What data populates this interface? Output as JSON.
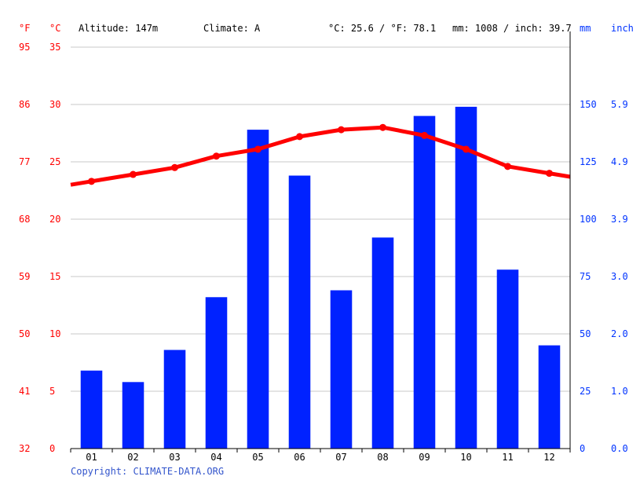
{
  "header": {
    "unit_f": "°F",
    "unit_c": "°C",
    "altitude": "Altitude: 147m",
    "climate": "Climate: A",
    "temp_avg": "°C: 25.6 / °F: 78.1",
    "precip_total": "mm: 1008 / inch: 39.7",
    "unit_mm": "mm",
    "unit_inch": "inch"
  },
  "footer": {
    "copyright": "Copyright: CLIMATE-DATA.ORG"
  },
  "colors": {
    "temperature": "#ff0000",
    "precipitation": "#0022ff",
    "grid": "#c8c8c8"
  },
  "chart_data": {
    "type": "bar+line",
    "categories": [
      "01",
      "02",
      "03",
      "04",
      "05",
      "06",
      "07",
      "08",
      "09",
      "10",
      "11",
      "12"
    ],
    "series": [
      {
        "kind": "bar",
        "axis": "right",
        "values": [
          34,
          29,
          43,
          66,
          139,
          119,
          69,
          92,
          145,
          149,
          78,
          45
        ]
      },
      {
        "kind": "line",
        "axis": "left",
        "values": [
          23.3,
          23.9,
          24.5,
          25.5,
          26.1,
          27.2,
          27.8,
          28.0,
          27.3,
          26.1,
          24.6,
          24.0
        ]
      }
    ],
    "y_left": {
      "range": [
        0,
        35
      ],
      "ticks_c": [
        "0",
        "5",
        "10",
        "15",
        "20",
        "25",
        "30",
        "35"
      ],
      "ticks_f": [
        "32",
        "41",
        "50",
        "59",
        "68",
        "77",
        "86",
        "95"
      ]
    },
    "y_right": {
      "range": [
        0,
        175
      ],
      "ticks_mm": [
        "0",
        "25",
        "50",
        "75",
        "100",
        "125",
        "150"
      ],
      "ticks_inch": [
        "0.0",
        "1.0",
        "2.0",
        "3.0",
        "3.9",
        "4.9",
        "5.9"
      ]
    },
    "grid": true
  }
}
